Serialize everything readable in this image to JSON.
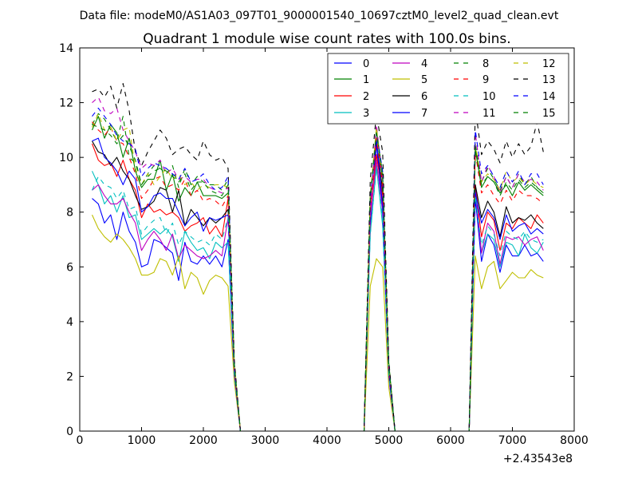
{
  "figure": {
    "suptitle": "Data file: modeM0/AS1A03_097T01_9000001540_10697cztM0_level2_quad_clean.evt"
  },
  "chart_data": {
    "type": "line",
    "title": "Quadrant 1 module wise count rates with 100.0s bins.",
    "xlabel": "",
    "ylabel": "",
    "xlim": [
      0,
      8000
    ],
    "ylim": [
      0,
      14
    ],
    "x_ticks": [
      "0",
      "1000",
      "2000",
      "3000",
      "4000",
      "5000",
      "6000",
      "7000",
      "8000"
    ],
    "y_ticks": [
      "0",
      "2",
      "4",
      "6",
      "8",
      "10",
      "12",
      "14"
    ],
    "x_offset_label": "+2.43543e8",
    "grid": false,
    "legend_position": "top-right",
    "legend_columns": 4,
    "x": [
      200,
      300,
      400,
      500,
      600,
      700,
      800,
      900,
      1000,
      1100,
      1200,
      1300,
      1400,
      1500,
      1600,
      1700,
      1800,
      1900,
      2000,
      2100,
      2200,
      2300,
      2400,
      2500,
      2600,
      4600,
      4700,
      4800,
      4900,
      5000,
      5100,
      6200,
      6300,
      6400,
      6500,
      6600,
      6700,
      6800,
      6900,
      7000,
      7100,
      7200,
      7300,
      7400,
      7500
    ],
    "series": [
      {
        "name": "0",
        "color": "#0000ff",
        "style": "solid"
      },
      {
        "name": "1",
        "color": "#008000",
        "style": "solid"
      },
      {
        "name": "2",
        "color": "#ff0000",
        "style": "solid"
      },
      {
        "name": "3",
        "color": "#00bfbf",
        "style": "solid"
      },
      {
        "name": "4",
        "color": "#bf00bf",
        "style": "solid"
      },
      {
        "name": "5",
        "color": "#bfbf00",
        "style": "solid"
      },
      {
        "name": "6",
        "color": "#000000",
        "style": "solid"
      },
      {
        "name": "7",
        "color": "#0000ff",
        "style": "solid"
      },
      {
        "name": "8",
        "color": "#008000",
        "style": "dashed"
      },
      {
        "name": "9",
        "color": "#ff0000",
        "style": "dashed"
      },
      {
        "name": "10",
        "color": "#00bfbf",
        "style": "dashed"
      },
      {
        "name": "11",
        "color": "#bf00bf",
        "style": "dashed"
      },
      {
        "name": "12",
        "color": "#bfbf00",
        "style": "dashed"
      },
      {
        "name": "13",
        "color": "#000000",
        "style": "dashed"
      },
      {
        "name": "14",
        "color": "#0000ff",
        "style": "dashed"
      },
      {
        "name": "15",
        "color": "#008000",
        "style": "dashed"
      }
    ]
  }
}
